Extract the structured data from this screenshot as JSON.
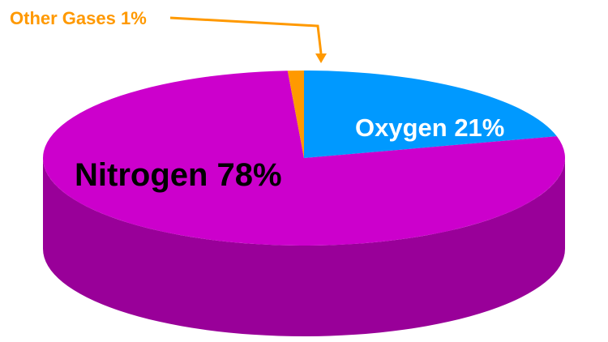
{
  "chart_data": {
    "type": "pie",
    "style": "3d",
    "legend": "none",
    "slices": [
      {
        "label": "Nitrogen 78%",
        "name": "Nitrogen",
        "value": 78,
        "color": "#cc00cc",
        "side_color": "#990099",
        "label_color": "#000000"
      },
      {
        "label": "Oxygen 21%",
        "name": "Oxygen",
        "value": 21,
        "color": "#0099ff",
        "side_color": "#0077cc",
        "label_color": "#ffffff"
      },
      {
        "label": "Other Gases 1%",
        "name": "Other Gases",
        "value": 1,
        "color": "#ff9900",
        "side_color": "#cc7a00",
        "label_color": "#ff9900"
      }
    ]
  }
}
